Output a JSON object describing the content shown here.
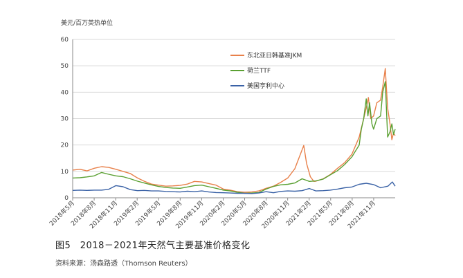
{
  "caption": "图5　2018－2021年天然气主要基准价格变化",
  "source": "资料来源：汤森路透（Thomson Reuters）",
  "chart_data": {
    "type": "line",
    "ylabel": "美元/百万英热单位",
    "ylim": [
      0,
      60
    ],
    "y_ticks": [
      0,
      10,
      20,
      30,
      40,
      50,
      60
    ],
    "x_tick_labels": [
      "2018年5月",
      "2018年8月",
      "2018年11月",
      "2019年2月",
      "2019年5月",
      "2019年8月",
      "2019年11月",
      "2020年2月",
      "2020年5月",
      "2020年8月",
      "2020年11月",
      "2021年2月",
      "2021年5月",
      "2021年8月",
      "2021年11月"
    ],
    "x_start": "2018-05",
    "x_end": "2022-02",
    "grid": "horizontal",
    "legend_position": "top-right",
    "series": [
      {
        "name": "东北亚日韩基准JKM",
        "color": "#e8804a",
        "points": [
          [
            "2018-05",
            10.5
          ],
          [
            "2018-06",
            10.8
          ],
          [
            "2018-07",
            10.2
          ],
          [
            "2018-08",
            11.2
          ],
          [
            "2018-09",
            11.8
          ],
          [
            "2018-10",
            11.5
          ],
          [
            "2018-11",
            10.8
          ],
          [
            "2018-12",
            10.0
          ],
          [
            "2019-01",
            9.2
          ],
          [
            "2019-02",
            7.5
          ],
          [
            "2019-03",
            6.3
          ],
          [
            "2019-04",
            5.2
          ],
          [
            "2019-05",
            4.8
          ],
          [
            "2019-06",
            4.4
          ],
          [
            "2019-07",
            4.5
          ],
          [
            "2019-08",
            4.7
          ],
          [
            "2019-09",
            5.2
          ],
          [
            "2019-10",
            6.2
          ],
          [
            "2019-11",
            6.0
          ],
          [
            "2019-12",
            5.4
          ],
          [
            "2020-01",
            4.8
          ],
          [
            "2020-02",
            3.3
          ],
          [
            "2020-03",
            2.9
          ],
          [
            "2020-04",
            2.3
          ],
          [
            "2020-05",
            2.1
          ],
          [
            "2020-06",
            2.2
          ],
          [
            "2020-07",
            2.6
          ],
          [
            "2020-08",
            3.6
          ],
          [
            "2020-09",
            4.4
          ],
          [
            "2020-10",
            5.8
          ],
          [
            "2020-11",
            7.5
          ],
          [
            "2020-12",
            11.0
          ],
          [
            "2021-01-08",
            19.8
          ],
          [
            "2021-01-20",
            13.0
          ],
          [
            "2021-02-05",
            8.0
          ],
          [
            "2021-02-20",
            6.2
          ],
          [
            "2021-03",
            6.3
          ],
          [
            "2021-04",
            7.2
          ],
          [
            "2021-05",
            8.8
          ],
          [
            "2021-06",
            11.2
          ],
          [
            "2021-07",
            13.3
          ],
          [
            "2021-08",
            16.5
          ],
          [
            "2021-09",
            23.0
          ],
          [
            "2021-09-20",
            30.0
          ],
          [
            "2021-10-01",
            34.0
          ],
          [
            "2021-10-10",
            38.0
          ],
          [
            "2021-10-20",
            30.0
          ],
          [
            "2021-11-01",
            31.0
          ],
          [
            "2021-11-15",
            36.0
          ],
          [
            "2021-12-01",
            37.0
          ],
          [
            "2021-12-10",
            42.0
          ],
          [
            "2021-12-21",
            49.0
          ],
          [
            "2021-12-31",
            34.0
          ],
          [
            "2022-01-10",
            28.0
          ],
          [
            "2022-01-18",
            22.0
          ],
          [
            "2022-01-25",
            24.5
          ],
          [
            "2022-02",
            23.5
          ]
        ]
      },
      {
        "name": "荷兰TTF",
        "color": "#5aa032",
        "points": [
          [
            "2018-05",
            7.5
          ],
          [
            "2018-06",
            7.6
          ],
          [
            "2018-07",
            7.9
          ],
          [
            "2018-08",
            8.3
          ],
          [
            "2018-09",
            9.6
          ],
          [
            "2018-10",
            8.9
          ],
          [
            "2018-11",
            8.3
          ],
          [
            "2018-12",
            8.0
          ],
          [
            "2019-01",
            7.2
          ],
          [
            "2019-02",
            6.3
          ],
          [
            "2019-03",
            5.6
          ],
          [
            "2019-04",
            4.9
          ],
          [
            "2019-05",
            4.3
          ],
          [
            "2019-06",
            3.9
          ],
          [
            "2019-07",
            3.7
          ],
          [
            "2019-08",
            3.6
          ],
          [
            "2019-09",
            4.1
          ],
          [
            "2019-10",
            4.6
          ],
          [
            "2019-11",
            4.8
          ],
          [
            "2019-12",
            4.2
          ],
          [
            "2020-01",
            3.6
          ],
          [
            "2020-02",
            2.9
          ],
          [
            "2020-03",
            2.6
          ],
          [
            "2020-04",
            2.1
          ],
          [
            "2020-05",
            1.7
          ],
          [
            "2020-06",
            1.8
          ],
          [
            "2020-07",
            2.0
          ],
          [
            "2020-08",
            3.3
          ],
          [
            "2020-09",
            4.3
          ],
          [
            "2020-10",
            4.9
          ],
          [
            "2020-11",
            5.1
          ],
          [
            "2020-12",
            5.6
          ],
          [
            "2021-01",
            7.2
          ],
          [
            "2021-02",
            6.2
          ],
          [
            "2021-03",
            6.4
          ],
          [
            "2021-04",
            7.1
          ],
          [
            "2021-05",
            8.7
          ],
          [
            "2021-06",
            10.3
          ],
          [
            "2021-07",
            12.6
          ],
          [
            "2021-08",
            15.5
          ],
          [
            "2021-09-01",
            20.0
          ],
          [
            "2021-09-10",
            26.0
          ],
          [
            "2021-09-20",
            30.0
          ],
          [
            "2021-10-01",
            37.5
          ],
          [
            "2021-10-08",
            31.0
          ],
          [
            "2021-10-15",
            36.0
          ],
          [
            "2021-10-25",
            28.0
          ],
          [
            "2021-11-01",
            26.0
          ],
          [
            "2021-11-15",
            30.0
          ],
          [
            "2021-12-01",
            31.0
          ],
          [
            "2021-12-10",
            40.0
          ],
          [
            "2021-12-21",
            44.0
          ],
          [
            "2021-12-31",
            23.0
          ],
          [
            "2022-01-10",
            25.0
          ],
          [
            "2022-01-18",
            28.0
          ],
          [
            "2022-01-25",
            24.0
          ],
          [
            "2022-02",
            26.0
          ]
        ]
      },
      {
        "name": "美国亨利中心",
        "color": "#3a62a6",
        "points": [
          [
            "2018-05",
            2.8
          ],
          [
            "2018-06",
            2.9
          ],
          [
            "2018-07",
            2.8
          ],
          [
            "2018-08",
            2.9
          ],
          [
            "2018-09",
            2.9
          ],
          [
            "2018-10",
            3.2
          ],
          [
            "2018-11",
            4.6
          ],
          [
            "2018-12",
            4.2
          ],
          [
            "2019-01",
            3.1
          ],
          [
            "2019-02",
            2.7
          ],
          [
            "2019-03",
            2.8
          ],
          [
            "2019-04",
            2.6
          ],
          [
            "2019-05",
            2.6
          ],
          [
            "2019-06",
            2.4
          ],
          [
            "2019-07",
            2.3
          ],
          [
            "2019-08",
            2.2
          ],
          [
            "2019-09",
            2.5
          ],
          [
            "2019-10",
            2.3
          ],
          [
            "2019-11",
            2.6
          ],
          [
            "2019-12",
            2.2
          ],
          [
            "2020-01",
            2.0
          ],
          [
            "2020-02",
            1.9
          ],
          [
            "2020-03",
            1.8
          ],
          [
            "2020-04",
            1.7
          ],
          [
            "2020-05",
            1.7
          ],
          [
            "2020-06",
            1.6
          ],
          [
            "2020-07",
            1.8
          ],
          [
            "2020-08",
            2.3
          ],
          [
            "2020-09",
            1.9
          ],
          [
            "2020-10",
            2.4
          ],
          [
            "2020-11",
            2.6
          ],
          [
            "2020-12",
            2.5
          ],
          [
            "2021-01",
            2.7
          ],
          [
            "2021-02",
            3.5
          ],
          [
            "2021-03",
            2.6
          ],
          [
            "2021-04",
            2.7
          ],
          [
            "2021-05",
            2.9
          ],
          [
            "2021-06",
            3.3
          ],
          [
            "2021-07",
            3.8
          ],
          [
            "2021-08",
            4.1
          ],
          [
            "2021-09",
            5.1
          ],
          [
            "2021-10",
            5.5
          ],
          [
            "2021-11",
            5.0
          ],
          [
            "2021-12",
            3.8
          ],
          [
            "2022-01",
            4.4
          ],
          [
            "2022-01-20",
            6.0
          ],
          [
            "2022-02",
            4.4
          ]
        ]
      }
    ]
  }
}
